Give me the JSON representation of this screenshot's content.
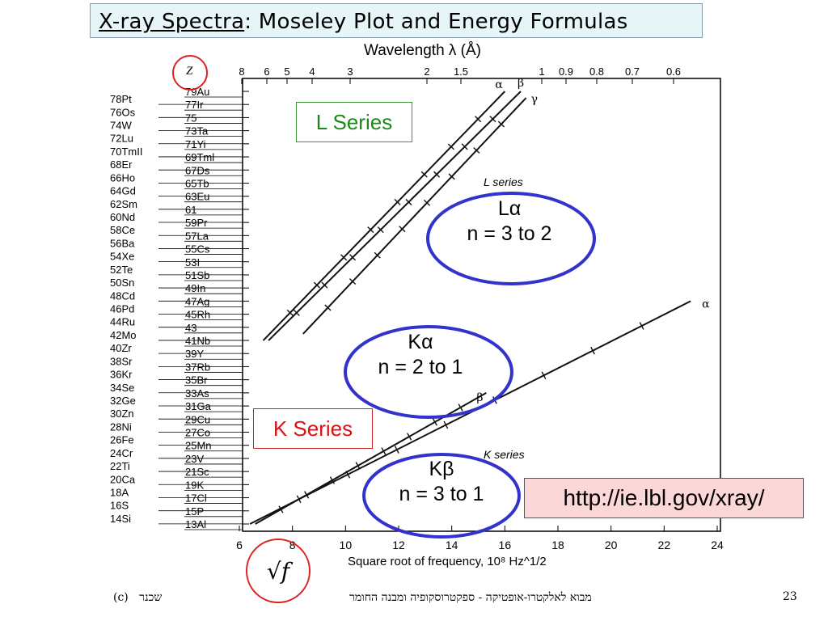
{
  "slide": {
    "title_prefix": "X-ray Spectra",
    "title_suffix": ": Moseley Plot and Energy Formulas",
    "page_number": "23",
    "footer_center": "מבוא לאלקטרו-אופטיקה - ספקטרוסקופיה ומבנה החומר",
    "footer_author": "שכנר",
    "footer_copyright": "(c)"
  },
  "annotations": {
    "l_series_box": "L Series",
    "k_series_box": "K Series",
    "url": "http://ie.lbl.gov/xray/",
    "la_symbol": "Lα",
    "la_transition": "n = 3 to 2",
    "ka_symbol": "Kα",
    "ka_transition": "n = 2 to 1",
    "kb_symbol": "Kβ",
    "kb_transition": "n = 3 to 1",
    "sqrt_symbol": "√f",
    "colors": {
      "title_bg": "#e6f6f8",
      "ellipse": "#3333cc",
      "circle": "#dd2222",
      "l_green": "#1a8a1a",
      "k_red": "#dd1111",
      "url_bg": "#fcd7d7"
    }
  },
  "chart_data": {
    "type": "line",
    "xlabel": "Square root of frequency, 10⁸ Hz^1/2",
    "top_axis_label": "Wavelength λ (Å)",
    "ylabel": "Z",
    "x_ticks": [
      "6",
      "8",
      "10",
      "12",
      "14",
      "16",
      "18",
      "20",
      "22",
      "24"
    ],
    "xlim": [
      6,
      24
    ],
    "top_ticks": [
      "8",
      "6",
      "5",
      "4",
      "3",
      "2",
      "1.5",
      "1",
      "0.9",
      "0.8",
      "0.7",
      "0.6"
    ],
    "ylim": [
      13,
      79
    ],
    "y_ticks_right": [
      "79Au",
      "77Ir",
      "75",
      "73Ta",
      "71Yi",
      "69Tml",
      "67Ds",
      "65Tb",
      "63Eu",
      "61",
      "59Pr",
      "57La",
      "55Cs",
      "53I",
      "51Sb",
      "49In",
      "47Ag",
      "45Rh",
      "43",
      "41Nb",
      "39Y",
      "37Rb",
      "35Br",
      "33As",
      "31Ga",
      "29Cu",
      "27Co",
      "25Mn",
      "23V",
      "21Sc",
      "19K",
      "17Cl",
      "15P",
      "13Al"
    ],
    "y_ticks_left": [
      "78Pt",
      "76Os",
      "74W",
      "72Lu",
      "70TmII",
      "68Er",
      "66Ho",
      "64Gd",
      "62Sm",
      "60Nd",
      "58Ce",
      "56Ba",
      "54Xe",
      "52Te",
      "50Sn",
      "48Cd",
      "46Pd",
      "44Ru",
      "42Mo",
      "40Zr",
      "38Sr",
      "36Kr",
      "34Se",
      "32Ge",
      "30Zn",
      "28Ni",
      "26Fe",
      "24Cr",
      "22Ti",
      "20Ca",
      "18A",
      "16S",
      "14Si"
    ],
    "series_labels": {
      "l_series": "L series",
      "k_series": "K series"
    },
    "series": [
      {
        "name": "α",
        "group": "L",
        "x": [
          6.9,
          16.0
        ],
        "y": [
          41,
          79
        ]
      },
      {
        "name": "β",
        "group": "L",
        "x": [
          7.1,
          16.6
        ],
        "y": [
          41,
          79
        ]
      },
      {
        "name": "γ",
        "group": "L",
        "x": [
          8.4,
          16.8
        ],
        "y": [
          42,
          78
        ]
      },
      {
        "name": "α",
        "group": "K",
        "x": [
          6.4,
          23.0
        ],
        "y": [
          13,
          47
        ]
      },
      {
        "name": "β",
        "group": "K",
        "x": [
          6.6,
          15.3
        ],
        "y": [
          13,
          33
        ]
      }
    ]
  }
}
